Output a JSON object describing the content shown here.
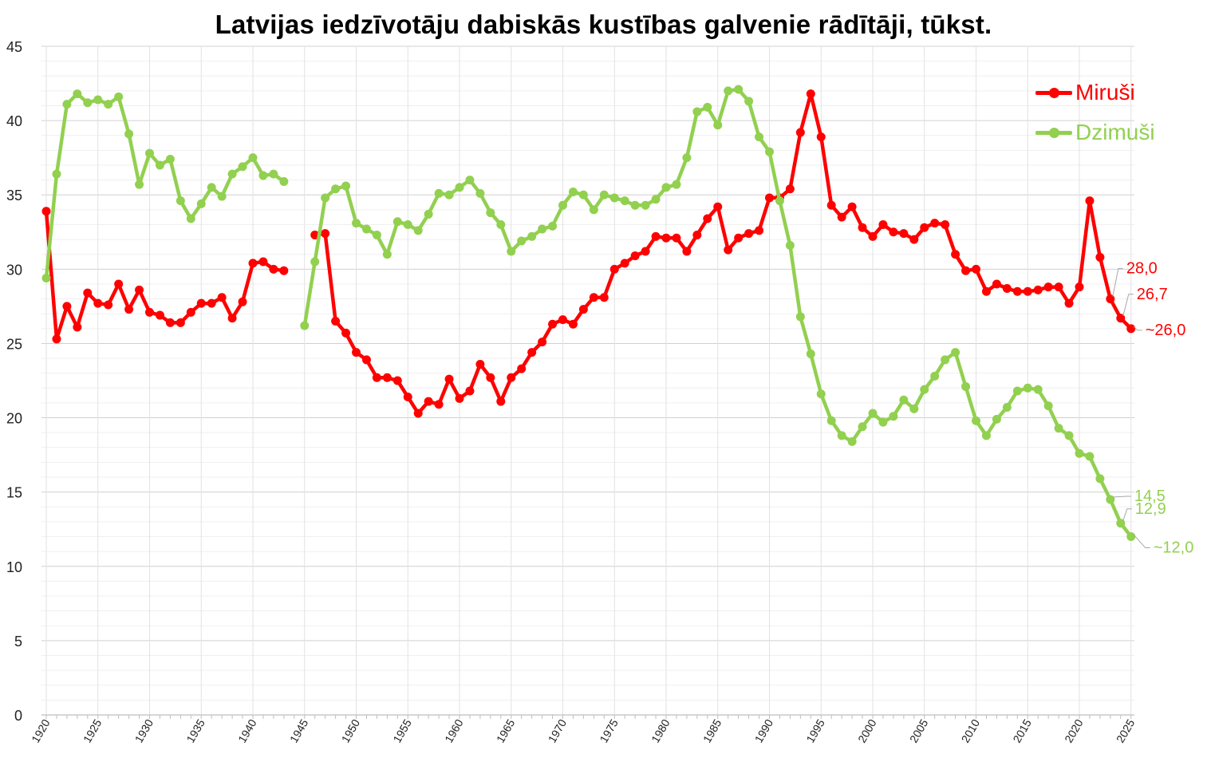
{
  "chart_data": {
    "type": "line",
    "title": "Latvijas iedzīvotāju dabiskās kustības galvenie rādītāji, tūkst.",
    "xlabel": "",
    "ylabel": "",
    "xlim": [
      1920,
      2025
    ],
    "ylim": [
      0,
      45
    ],
    "yticks": [
      "0",
      "5",
      "10",
      "15",
      "20",
      "25",
      "30",
      "35",
      "40",
      "45"
    ],
    "xticks": [
      "1920",
      "1925",
      "1930",
      "1935",
      "1940",
      "1945",
      "1950",
      "1955",
      "1960",
      "1965",
      "1970",
      "1975",
      "1980",
      "1985",
      "1990",
      "1995",
      "2000",
      "2005",
      "2010",
      "2015",
      "2020",
      "2025"
    ],
    "grid": true,
    "legend_position": "top-right",
    "series": [
      {
        "name": "Miruši",
        "color": "#ff0000",
        "segments": [
          {
            "x": [
              1920,
              1921,
              1922,
              1923,
              1924,
              1925,
              1926,
              1927,
              1928,
              1929,
              1930,
              1931,
              1932,
              1933,
              1934,
              1935,
              1936,
              1937,
              1938,
              1939,
              1940,
              1941,
              1942,
              1943
            ],
            "y": [
              33.9,
              25.3,
              27.5,
              26.1,
              28.4,
              27.7,
              27.6,
              29.0,
              27.3,
              28.6,
              27.1,
              26.9,
              26.4,
              26.4,
              27.1,
              27.7,
              27.7,
              28.1,
              26.7,
              27.8,
              30.4,
              30.5,
              30.0,
              29.9
            ]
          },
          {
            "x": [
              1946,
              1947,
              1948,
              1949,
              1950,
              1951,
              1952,
              1953,
              1954,
              1955,
              1956,
              1957,
              1958,
              1959,
              1960,
              1961,
              1962,
              1963,
              1964,
              1965,
              1966,
              1967,
              1968,
              1969,
              1970,
              1971,
              1972,
              1973,
              1974,
              1975,
              1976,
              1977,
              1978,
              1979,
              1980,
              1981,
              1982,
              1983,
              1984,
              1985,
              1986,
              1987,
              1988,
              1989,
              1990,
              1991,
              1992,
              1993,
              1994,
              1995,
              1996,
              1997,
              1998,
              1999,
              2000,
              2001,
              2002,
              2003,
              2004,
              2005,
              2006,
              2007,
              2008,
              2009,
              2010,
              2011,
              2012,
              2013,
              2014,
              2015,
              2016,
              2017,
              2018,
              2019,
              2020,
              2021,
              2022,
              2023,
              2024,
              2025
            ],
            "y": [
              32.3,
              32.4,
              26.5,
              25.7,
              24.4,
              23.9,
              22.7,
              22.7,
              22.5,
              21.4,
              20.3,
              21.1,
              20.9,
              22.6,
              21.3,
              21.8,
              23.6,
              22.7,
              21.1,
              22.7,
              23.3,
              24.4,
              25.1,
              26.3,
              26.6,
              26.3,
              27.3,
              28.1,
              28.1,
              30.0,
              30.4,
              30.9,
              31.2,
              32.2,
              32.1,
              32.1,
              31.2,
              32.3,
              33.4,
              34.2,
              31.3,
              32.1,
              32.4,
              32.6,
              34.8,
              34.8,
              35.4,
              39.2,
              41.8,
              38.9,
              34.3,
              33.5,
              34.2,
              32.8,
              32.2,
              33.0,
              32.5,
              32.4,
              32.0,
              32.8,
              33.1,
              33.0,
              31.0,
              29.9,
              30.0,
              28.5,
              29.0,
              28.7,
              28.5,
              28.5,
              28.6,
              28.8,
              28.8,
              27.7,
              28.8,
              34.6,
              30.8,
              28.0,
              26.7,
              26.0
            ]
          }
        ],
        "end_labels": [
          "28,0",
          "26,7",
          "~26,0"
        ]
      },
      {
        "name": "Dzimuši",
        "color": "#92d050",
        "segments": [
          {
            "x": [
              1920,
              1921,
              1922,
              1923,
              1924,
              1925,
              1926,
              1927,
              1928,
              1929,
              1930,
              1931,
              1932,
              1933,
              1934,
              1935,
              1936,
              1937,
              1938,
              1939,
              1940,
              1941,
              1942,
              1943
            ],
            "y": [
              29.4,
              36.4,
              41.1,
              41.8,
              41.2,
              41.4,
              41.1,
              41.6,
              39.1,
              35.7,
              37.8,
              37.0,
              37.4,
              34.6,
              33.4,
              34.4,
              35.5,
              34.9,
              36.4,
              36.9,
              37.5,
              36.3,
              36.4,
              35.9
            ]
          },
          {
            "x": [
              1945,
              1946,
              1947,
              1948,
              1949,
              1950,
              1951,
              1952,
              1953,
              1954,
              1955,
              1956,
              1957,
              1958,
              1959,
              1960,
              1961,
              1962,
              1963,
              1964,
              1965,
              1966,
              1967,
              1968,
              1969,
              1970,
              1971,
              1972,
              1973,
              1974,
              1975,
              1976,
              1977,
              1978,
              1979,
              1980,
              1981,
              1982,
              1983,
              1984,
              1985,
              1986,
              1987,
              1988,
              1989,
              1990,
              1991,
              1992,
              1993,
              1994,
              1995,
              1996,
              1997,
              1998,
              1999,
              2000,
              2001,
              2002,
              2003,
              2004,
              2005,
              2006,
              2007,
              2008,
              2009,
              2010,
              2011,
              2012,
              2013,
              2014,
              2015,
              2016,
              2017,
              2018,
              2019,
              2020,
              2021,
              2022,
              2023,
              2024,
              2025
            ],
            "y": [
              26.2,
              30.5,
              34.8,
              35.4,
              35.6,
              33.1,
              32.7,
              32.3,
              31.0,
              33.2,
              33.0,
              32.6,
              33.7,
              35.1,
              35.0,
              35.5,
              36.0,
              35.1,
              33.8,
              33.0,
              31.2,
              31.9,
              32.2,
              32.7,
              32.9,
              34.3,
              35.2,
              35.0,
              34.0,
              35.0,
              34.8,
              34.6,
              34.3,
              34.3,
              34.7,
              35.5,
              35.7,
              37.5,
              40.6,
              40.9,
              39.7,
              42.0,
              42.1,
              41.3,
              38.9,
              37.9,
              34.6,
              31.6,
              26.8,
              24.3,
              21.6,
              19.8,
              18.8,
              18.4,
              19.4,
              20.3,
              19.7,
              20.1,
              21.2,
              20.6,
              21.9,
              22.8,
              23.9,
              24.4,
              22.1,
              19.8,
              18.8,
              19.9,
              20.7,
              21.8,
              22.0,
              21.9,
              20.8,
              19.3,
              18.8,
              17.6,
              17.4,
              15.9,
              14.5,
              12.9,
              12.0
            ]
          }
        ],
        "end_labels": [
          "14,5",
          "12,9",
          "~12,0"
        ]
      }
    ]
  }
}
